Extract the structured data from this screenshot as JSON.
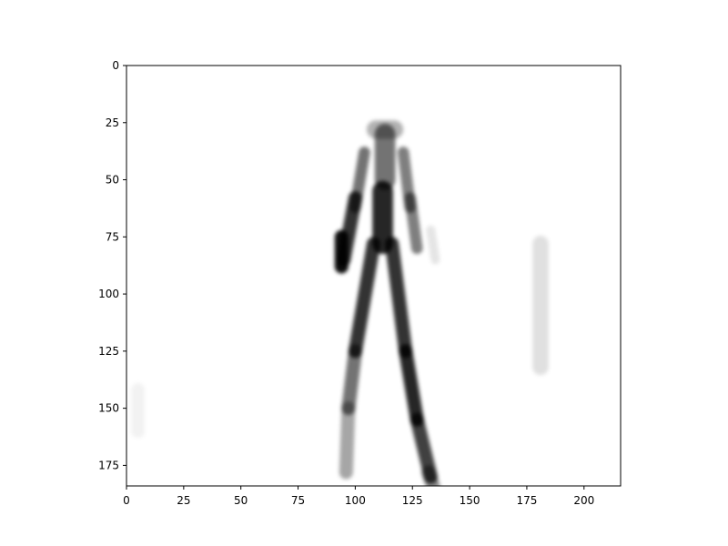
{
  "chart_data": {
    "type": "heatmap",
    "colormap": "grayscale-inverted",
    "background_color": "#ffffff",
    "foreground_color": "#000000",
    "title": "",
    "xlabel": "",
    "ylabel": "",
    "xlim": [
      0,
      216
    ],
    "ylim": [
      184,
      0
    ],
    "y_axis_inverted": true,
    "grid": false,
    "x_ticks": [
      {
        "value": 0,
        "label": "0"
      },
      {
        "value": 25,
        "label": "25"
      },
      {
        "value": 50,
        "label": "50"
      },
      {
        "value": 75,
        "label": "75"
      },
      {
        "value": 100,
        "label": "100"
      },
      {
        "value": 125,
        "label": "125"
      },
      {
        "value": 150,
        "label": "150"
      },
      {
        "value": 175,
        "label": "175"
      },
      {
        "value": 200,
        "label": "200"
      }
    ],
    "y_ticks": [
      {
        "value": 0,
        "label": "0"
      },
      {
        "value": 25,
        "label": "25"
      },
      {
        "value": 50,
        "label": "50"
      },
      {
        "value": 75,
        "label": "75"
      },
      {
        "value": 100,
        "label": "100"
      },
      {
        "value": 125,
        "label": "125"
      },
      {
        "value": 150,
        "label": "150"
      },
      {
        "value": 175,
        "label": "175"
      }
    ],
    "intensity_regions": [
      {
        "segment": [
          [
            113,
            30
          ],
          [
            113,
            50
          ]
        ],
        "width": 9,
        "intensity": 0.55
      },
      {
        "segment": [
          [
            109,
            28
          ],
          [
            117,
            28
          ]
        ],
        "width": 8,
        "intensity": 0.3
      },
      {
        "segment": [
          [
            104,
            38
          ],
          [
            100,
            62
          ]
        ],
        "width": 5,
        "intensity": 0.55
      },
      {
        "segment": [
          [
            121,
            38
          ],
          [
            124,
            62
          ]
        ],
        "width": 5,
        "intensity": 0.5
      },
      {
        "segment": [
          [
            112,
            55
          ],
          [
            112,
            78
          ]
        ],
        "width": 9,
        "intensity": 0.85
      },
      {
        "segment": [
          [
            100,
            58
          ],
          [
            95,
            85
          ]
        ],
        "width": 6,
        "intensity": 0.8
      },
      {
        "segment": [
          [
            124,
            58
          ],
          [
            127,
            80
          ]
        ],
        "width": 5,
        "intensity": 0.5
      },
      {
        "segment": [
          [
            94,
            75
          ],
          [
            94,
            88
          ]
        ],
        "width": 6,
        "intensity": 0.95
      },
      {
        "segment": [
          [
            108,
            78
          ],
          [
            100,
            125
          ]
        ],
        "width": 6,
        "intensity": 0.8
      },
      {
        "segment": [
          [
            116,
            78
          ],
          [
            122,
            125
          ]
        ],
        "width": 6,
        "intensity": 0.8
      },
      {
        "segment": [
          [
            100,
            125
          ],
          [
            97,
            150
          ]
        ],
        "width": 6,
        "intensity": 0.55
      },
      {
        "segment": [
          [
            97,
            150
          ],
          [
            96,
            178
          ]
        ],
        "width": 6,
        "intensity": 0.35
      },
      {
        "segment": [
          [
            122,
            125
          ],
          [
            127,
            155
          ]
        ],
        "width": 6,
        "intensity": 0.85
      },
      {
        "segment": [
          [
            127,
            155
          ],
          [
            133,
            180
          ]
        ],
        "width": 6,
        "intensity": 0.75
      },
      {
        "segment": [
          [
            132,
            178
          ],
          [
            134,
            184
          ]
        ],
        "width": 6,
        "intensity": 0.45
      },
      {
        "segment": [
          [
            181,
            78
          ],
          [
            181,
            132
          ]
        ],
        "width": 7,
        "intensity": 0.12
      },
      {
        "segment": [
          [
            133,
            72
          ],
          [
            135,
            85
          ]
        ],
        "width": 4,
        "intensity": 0.1
      },
      {
        "segment": [
          [
            5,
            142
          ],
          [
            5,
            160
          ]
        ],
        "width": 6,
        "intensity": 0.05
      }
    ]
  }
}
